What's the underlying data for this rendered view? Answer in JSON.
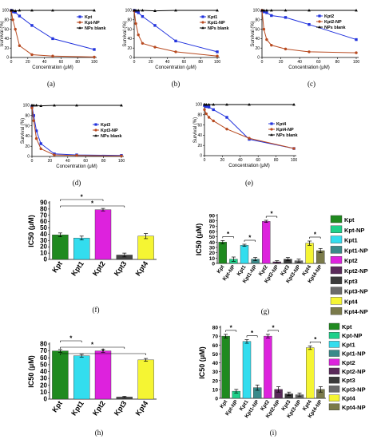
{
  "chart_data": [
    {
      "id": "a",
      "type": "line",
      "panel_label": "(a)",
      "xlabel": "Concentration (μM)",
      "ylabel": "Survival (%)",
      "xlim": [
        0,
        100
      ],
      "ylim": [
        0,
        100
      ],
      "xticks": [
        "0",
        "20",
        "40",
        "60",
        "80",
        "100"
      ],
      "yticks": [
        "0",
        "20",
        "40",
        "60",
        "80",
        "100"
      ],
      "legend_position": "right",
      "series": [
        {
          "name": "Kpt",
          "color": "#2233dd",
          "marker": "square",
          "x": [
            0,
            2,
            5,
            10,
            25,
            50,
            100
          ],
          "y": [
            100,
            97,
            96,
            88,
            68,
            40,
            17
          ]
        },
        {
          "name": "Kpt-NP",
          "color": "#b84a20",
          "marker": "circle",
          "x": [
            0,
            2,
            5,
            10,
            25,
            50,
            100
          ],
          "y": [
            99,
            80,
            60,
            25,
            6,
            3,
            1
          ]
        },
        {
          "name": "NPs blank",
          "color": "#000000",
          "marker": "triangle",
          "x": [
            0,
            2,
            5,
            10,
            25,
            50,
            100
          ],
          "y": [
            100,
            100,
            99,
            100,
            100,
            100,
            100
          ]
        }
      ]
    },
    {
      "id": "b",
      "type": "line",
      "panel_label": "(b)",
      "xlabel": "Concentration (μM)",
      "ylabel": "Survival (%)",
      "xlim": [
        0,
        100
      ],
      "ylim": [
        0,
        100
      ],
      "xticks": [
        "0",
        "20",
        "40",
        "60",
        "80",
        "100"
      ],
      "yticks": [
        "0",
        "20",
        "40",
        "60",
        "80",
        "100"
      ],
      "legend_position": "top-right",
      "series": [
        {
          "name": "Kpt1",
          "color": "#2233dd",
          "marker": "square",
          "x": [
            0,
            2,
            5,
            10,
            25,
            50,
            100
          ],
          "y": [
            100,
            98,
            95,
            87,
            68,
            35,
            12
          ]
        },
        {
          "name": "Kpt1-NP",
          "color": "#b84a20",
          "marker": "circle",
          "x": [
            0,
            2,
            5,
            10,
            25,
            50,
            100
          ],
          "y": [
            99,
            72,
            48,
            30,
            22,
            12,
            3
          ]
        },
        {
          "name": "NPs blank",
          "color": "#000000",
          "marker": "triangle",
          "x": [
            0,
            2,
            5,
            10,
            25,
            50,
            100
          ],
          "y": [
            100,
            100,
            100,
            100,
            99,
            100,
            100
          ]
        }
      ]
    },
    {
      "id": "c",
      "type": "line",
      "panel_label": "(c)",
      "xlabel": "Concentration (μM)",
      "ylabel": "Survival (%)",
      "xlim": [
        0,
        100
      ],
      "ylim": [
        0,
        100
      ],
      "xticks": [
        "0",
        "20",
        "40",
        "60",
        "80",
        "100"
      ],
      "yticks": [
        "0",
        "20",
        "40",
        "60",
        "80",
        "100"
      ],
      "legend_position": "top-right",
      "series": [
        {
          "name": "Kpt2",
          "color": "#2233dd",
          "marker": "square",
          "x": [
            0,
            2,
            5,
            10,
            25,
            50,
            100
          ],
          "y": [
            99,
            97,
            95,
            89,
            85,
            70,
            38
          ]
        },
        {
          "name": "Kpt2-NP",
          "color": "#b84a20",
          "marker": "circle",
          "x": [
            0,
            2,
            5,
            10,
            25,
            50,
            100
          ],
          "y": [
            100,
            60,
            38,
            26,
            18,
            12,
            10
          ]
        },
        {
          "name": "NPs blank",
          "color": "#000000",
          "marker": "triangle",
          "x": [
            0,
            2,
            5,
            10,
            25,
            50,
            100
          ],
          "y": [
            100,
            100,
            100,
            100,
            100,
            100,
            100
          ]
        }
      ]
    },
    {
      "id": "d",
      "type": "line",
      "panel_label": "(d)",
      "xlabel": "Concentration (μM)",
      "ylabel": "Survival (%)",
      "xlim": [
        0,
        100
      ],
      "ylim": [
        0,
        100
      ],
      "xticks": [
        "0",
        "20",
        "40",
        "60",
        "80",
        "100"
      ],
      "yticks": [
        "0",
        "20",
        "40",
        "60",
        "80",
        "100"
      ],
      "legend_position": "right",
      "series": [
        {
          "name": "Kpt3",
          "color": "#2233dd",
          "marker": "square",
          "x": [
            0,
            2,
            5,
            10,
            25,
            50,
            100
          ],
          "y": [
            98,
            80,
            50,
            25,
            5,
            3,
            2
          ]
        },
        {
          "name": "Kpt3-NP",
          "color": "#b84a20",
          "marker": "circle",
          "x": [
            0,
            2,
            5,
            10,
            25,
            50,
            100
          ],
          "y": [
            95,
            70,
            35,
            15,
            3,
            2,
            1
          ]
        },
        {
          "name": "NPs blank",
          "color": "#000000",
          "marker": "triangle",
          "x": [
            0,
            2,
            5,
            10,
            25,
            50,
            100
          ],
          "y": [
            100,
            100,
            100,
            99,
            100,
            100,
            100
          ]
        }
      ]
    },
    {
      "id": "e",
      "type": "line",
      "panel_label": "(e)",
      "xlabel": "Concentration (μM)",
      "ylabel": "Survival (%)",
      "xlim": [
        0,
        100
      ],
      "ylim": [
        0,
        100
      ],
      "xticks": [
        "0",
        "20",
        "40",
        "60",
        "80",
        "100"
      ],
      "yticks": [
        "0",
        "20",
        "40",
        "60",
        "80",
        "100"
      ],
      "legend_position": "right",
      "series": [
        {
          "name": "Kpt4",
          "color": "#2233dd",
          "marker": "square",
          "x": [
            0,
            2,
            5,
            10,
            25,
            50,
            100
          ],
          "y": [
            98,
            96,
            95,
            90,
            75,
            32,
            14
          ]
        },
        {
          "name": "Kpt4-NP",
          "color": "#b84a20",
          "marker": "circle",
          "x": [
            0,
            2,
            5,
            10,
            25,
            50,
            100
          ],
          "y": [
            90,
            82,
            75,
            68,
            52,
            34,
            14
          ]
        },
        {
          "name": "NPs blank",
          "color": "#000000",
          "marker": "triangle",
          "x": [
            0,
            2,
            5,
            10,
            25,
            50,
            100
          ],
          "y": [
            100,
            100,
            100,
            100,
            100,
            100,
            100
          ]
        }
      ]
    },
    {
      "id": "f",
      "type": "bar",
      "panel_label": "(f)",
      "ylabel": "IC50 (μM)",
      "ylim": [
        0,
        90
      ],
      "yticks": [
        "0",
        "10",
        "20",
        "30",
        "40",
        "50",
        "60",
        "70",
        "80",
        "90"
      ],
      "categories": [
        "Kpt",
        "Kpt1",
        "Kpt2",
        "Kpt3",
        "Kpt4"
      ],
      "values": [
        39,
        34,
        79,
        7,
        37
      ],
      "errors": [
        3,
        3,
        2,
        3,
        4
      ],
      "colors": [
        "#1f8a1f",
        "#33ddee",
        "#dd22dd",
        "#444444",
        "#f5f533"
      ],
      "significance": [
        {
          "from": "Kpt",
          "to": "Kpt2",
          "label": "*"
        },
        {
          "from": "Kpt",
          "to": "Kpt3",
          "label": "*"
        }
      ]
    },
    {
      "id": "g",
      "type": "bar",
      "panel_label": "(g)",
      "ylabel": "IC50 (μM)",
      "ylim": [
        0,
        90
      ],
      "yticks": [
        "0",
        "10",
        "20",
        "30",
        "40",
        "50",
        "60",
        "70",
        "80",
        "90"
      ],
      "categories": [
        "Kpt",
        "Kpt-NP",
        "Kpt1",
        "Kpt1-NP",
        "Kpt2",
        "Kpt2-NP",
        "Kpt3",
        "Kpt3-NP",
        "Kpt4",
        "Kpt4-NP"
      ],
      "values": [
        40,
        8,
        34,
        8,
        79,
        3,
        8,
        5,
        38,
        24
      ],
      "errors": [
        3,
        4,
        2,
        3,
        2,
        2,
        3,
        3,
        4,
        4
      ],
      "colors": [
        "#1f8a1f",
        "#1fd08a",
        "#33ddee",
        "#3a8a8a",
        "#dd22dd",
        "#5a2a5a",
        "#3a3a3a",
        "#6a6a6a",
        "#f5f533",
        "#7a7a4a"
      ],
      "legend_position": "right",
      "significance": [
        {
          "from": "Kpt",
          "to": "Kpt-NP",
          "label": "*"
        },
        {
          "from": "Kpt1",
          "to": "Kpt1-NP",
          "label": "*"
        },
        {
          "from": "Kpt2",
          "to": "Kpt2-NP",
          "label": "*"
        },
        {
          "from": "Kpt4",
          "to": "Kpt4-NP",
          "label": "*"
        }
      ]
    },
    {
      "id": "h",
      "type": "bar",
      "panel_label": "(h)",
      "ylabel": "IC50 (μM)",
      "ylim": [
        0,
        80
      ],
      "yticks": [
        "0",
        "10",
        "20",
        "30",
        "40",
        "50",
        "60",
        "70",
        "80"
      ],
      "categories": [
        "Kpt",
        "Kpt1",
        "Kpt2",
        "Kpt3",
        "Kpt4"
      ],
      "values": [
        70,
        63,
        70,
        3,
        57
      ],
      "errors": [
        2,
        2,
        2,
        1,
        2
      ],
      "colors": [
        "#1f8a1f",
        "#33ddee",
        "#dd22dd",
        "#444444",
        "#f5f533"
      ],
      "significance": [
        {
          "from": "Kpt",
          "to": "Kpt1",
          "label": "*"
        },
        {
          "from": "Kpt",
          "to": "Kpt3",
          "label": "*"
        },
        {
          "from": "Kpt",
          "to": "Kpt4",
          "label": "*"
        }
      ]
    },
    {
      "id": "i",
      "type": "bar",
      "panel_label": "(i)",
      "ylabel": "IC50 (μM)",
      "ylim": [
        0,
        80
      ],
      "yticks": [
        "0",
        "10",
        "20",
        "30",
        "40",
        "50",
        "60",
        "70",
        "80"
      ],
      "categories": [
        "Kpt",
        "Kpt-NP",
        "Kpt1",
        "Kpt1-NP",
        "Kpt2",
        "Kpt2-NP",
        "Kpt3",
        "Kpt3-NP",
        "Kpt4",
        "Kpt4-NP"
      ],
      "values": [
        70,
        8,
        64,
        12,
        70,
        10,
        5,
        4,
        57,
        10
      ],
      "errors": [
        2,
        2,
        2,
        3,
        2,
        3,
        2,
        2,
        2,
        3
      ],
      "colors": [
        "#1f8a1f",
        "#1fd08a",
        "#33ddee",
        "#3a8a8a",
        "#dd22dd",
        "#5a2a5a",
        "#3a3a3a",
        "#6a6a6a",
        "#f5f533",
        "#7a7a4a"
      ],
      "legend_position": "right",
      "significance": [
        {
          "from": "Kpt",
          "to": "Kpt-NP",
          "label": "*"
        },
        {
          "from": "Kpt1",
          "to": "Kpt1-NP",
          "label": "*"
        },
        {
          "from": "Kpt2",
          "to": "Kpt2-NP",
          "label": "*"
        },
        {
          "from": "Kpt4",
          "to": "Kpt4-NP",
          "label": "*"
        }
      ]
    }
  ]
}
